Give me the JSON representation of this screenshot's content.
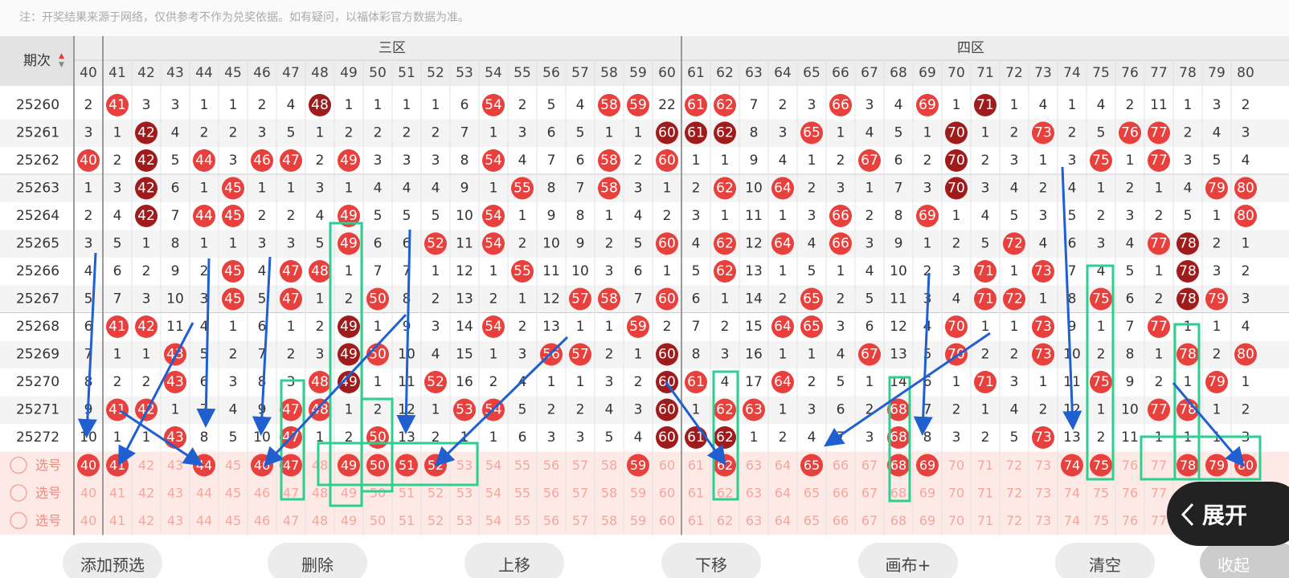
{
  "note": "注：开奖结果来源于网络，仅供参考不作为兑奖依据。如有疑问，以福体彩官方数据为准。",
  "header": {
    "period_label": "期次",
    "zones": [
      "三区",
      "四区"
    ]
  },
  "columns": [
    40,
    41,
    42,
    43,
    44,
    45,
    46,
    47,
    48,
    49,
    50,
    51,
    52,
    53,
    54,
    55,
    56,
    57,
    58,
    59,
    60,
    61,
    62,
    63,
    64,
    65,
    66,
    67,
    68,
    69,
    70,
    71,
    72,
    73,
    74,
    75,
    76,
    77,
    78,
    79,
    80
  ],
  "rows": [
    {
      "period": 25260,
      "cells": [
        2,
        41,
        3,
        3,
        1,
        1,
        2,
        4,
        48,
        1,
        1,
        1,
        1,
        6,
        54,
        2,
        5,
        4,
        58,
        59,
        22,
        61,
        62,
        7,
        2,
        3,
        66,
        3,
        4,
        69,
        1,
        71,
        1,
        4,
        1,
        4,
        2,
        11,
        1,
        3,
        2
      ],
      "dark": [
        48,
        71
      ]
    },
    {
      "period": 25261,
      "cells": [
        3,
        1,
        42,
        4,
        2,
        2,
        3,
        5,
        1,
        2,
        2,
        2,
        2,
        7,
        1,
        3,
        6,
        5,
        1,
        1,
        60,
        61,
        62,
        8,
        3,
        65,
        1,
        4,
        5,
        1,
        70,
        1,
        2,
        73,
        2,
        5,
        76,
        77,
        2,
        4,
        3
      ],
      "dark": [
        42,
        60,
        61,
        62,
        70
      ]
    },
    {
      "period": 25262,
      "cells": [
        40,
        2,
        42,
        5,
        44,
        3,
        46,
        47,
        2,
        49,
        3,
        3,
        3,
        8,
        54,
        4,
        7,
        6,
        58,
        2,
        60,
        1,
        1,
        9,
        4,
        1,
        2,
        67,
        6,
        2,
        70,
        2,
        3,
        1,
        3,
        75,
        1,
        77,
        3,
        5,
        4
      ],
      "dark": [
        42,
        70
      ]
    },
    {
      "period": 25263,
      "cells": [
        1,
        3,
        42,
        6,
        1,
        45,
        1,
        1,
        3,
        1,
        4,
        4,
        4,
        9,
        1,
        55,
        8,
        7,
        58,
        3,
        1,
        2,
        62,
        10,
        64,
        2,
        3,
        1,
        7,
        3,
        70,
        3,
        4,
        2,
        4,
        1,
        2,
        1,
        4,
        79,
        80
      ],
      "dark": [
        42,
        70
      ]
    },
    {
      "period": 25264,
      "cells": [
        2,
        4,
        42,
        7,
        44,
        45,
        2,
        2,
        4,
        49,
        5,
        5,
        5,
        10,
        54,
        1,
        9,
        8,
        1,
        4,
        2,
        3,
        1,
        11,
        1,
        3,
        66,
        2,
        8,
        69,
        1,
        4,
        5,
        3,
        5,
        2,
        3,
        2,
        5,
        1,
        80
      ],
      "dark": [
        42
      ]
    },
    {
      "period": 25265,
      "cells": [
        3,
        5,
        1,
        8,
        1,
        1,
        3,
        3,
        5,
        49,
        6,
        6,
        52,
        11,
        54,
        2,
        10,
        9,
        2,
        5,
        60,
        4,
        62,
        12,
        64,
        4,
        66,
        3,
        9,
        1,
        2,
        5,
        72,
        4,
        6,
        3,
        4,
        77,
        78,
        2,
        1
      ],
      "dark": [
        78
      ]
    },
    {
      "period": 25266,
      "cells": [
        4,
        6,
        2,
        9,
        2,
        45,
        4,
        47,
        48,
        1,
        7,
        7,
        1,
        12,
        1,
        55,
        11,
        10,
        3,
        6,
        1,
        5,
        62,
        13,
        1,
        5,
        1,
        4,
        10,
        2,
        3,
        71,
        1,
        73,
        7,
        4,
        5,
        1,
        78,
        3,
        2
      ],
      "dark": [
        78
      ]
    },
    {
      "period": 25267,
      "cells": [
        5,
        7,
        3,
        10,
        3,
        45,
        5,
        47,
        1,
        2,
        50,
        8,
        2,
        13,
        2,
        1,
        12,
        57,
        58,
        7,
        60,
        6,
        1,
        14,
        2,
        65,
        2,
        5,
        11,
        3,
        4,
        71,
        72,
        1,
        8,
        75,
        6,
        2,
        78,
        79,
        3
      ],
      "dark": [
        78
      ]
    },
    {
      "period": 25268,
      "cells": [
        6,
        41,
        42,
        11,
        4,
        1,
        6,
        1,
        2,
        49,
        1,
        9,
        3,
        14,
        54,
        2,
        13,
        1,
        1,
        59,
        2,
        7,
        2,
        15,
        64,
        65,
        3,
        6,
        12,
        4,
        70,
        1,
        1,
        73,
        9,
        1,
        7,
        77,
        1,
        1,
        4
      ],
      "dark": [
        49
      ]
    },
    {
      "period": 25269,
      "cells": [
        7,
        1,
        1,
        43,
        5,
        2,
        7,
        2,
        3,
        49,
        50,
        10,
        4,
        15,
        1,
        3,
        56,
        57,
        2,
        1,
        60,
        8,
        3,
        16,
        1,
        1,
        4,
        67,
        13,
        5,
        70,
        2,
        2,
        73,
        10,
        2,
        8,
        1,
        78,
        2,
        80
      ],
      "dark": [
        49,
        60
      ]
    },
    {
      "period": 25270,
      "cells": [
        8,
        2,
        2,
        43,
        6,
        3,
        8,
        3,
        48,
        49,
        1,
        11,
        52,
        16,
        2,
        4,
        1,
        1,
        3,
        2,
        60,
        61,
        4,
        17,
        64,
        2,
        5,
        1,
        14,
        6,
        1,
        71,
        3,
        1,
        11,
        75,
        9,
        2,
        1,
        79,
        1
      ],
      "dark": [
        49,
        60
      ]
    },
    {
      "period": 25271,
      "cells": [
        9,
        41,
        42,
        1,
        7,
        4,
        9,
        47,
        48,
        1,
        2,
        12,
        1,
        53,
        54,
        5,
        2,
        2,
        4,
        3,
        60,
        1,
        62,
        63,
        1,
        3,
        6,
        2,
        68,
        7,
        2,
        1,
        4,
        2,
        12,
        1,
        10,
        77,
        78,
        1,
        2
      ],
      "dark": [
        60
      ]
    },
    {
      "period": 25272,
      "cells": [
        10,
        1,
        1,
        43,
        8,
        5,
        10,
        47,
        1,
        2,
        50,
        13,
        2,
        1,
        1,
        6,
        3,
        3,
        5,
        4,
        60,
        61,
        62,
        1,
        2,
        4,
        7,
        3,
        68,
        8,
        3,
        2,
        5,
        73,
        13,
        2,
        11,
        1,
        1,
        1,
        3
      ],
      "dark": [
        60,
        61,
        62
      ]
    }
  ],
  "select_rows": [
    {
      "label": "选号",
      "selected": [
        40,
        41,
        44,
        46,
        47,
        49,
        50,
        51,
        52,
        59,
        62,
        65,
        68,
        69,
        74,
        75,
        78,
        79,
        80
      ]
    },
    {
      "label": "选号"
    },
    {
      "label": "选号"
    }
  ],
  "buttons": [
    "添加预选",
    "删除",
    "上移",
    "下移",
    "画布+",
    "清空",
    "收起"
  ],
  "expand_button": "展开"
}
